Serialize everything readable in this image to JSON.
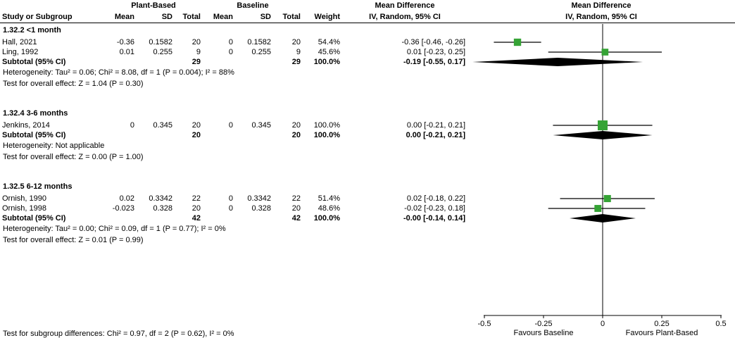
{
  "header": {
    "study_col": "Study or Subgroup",
    "group1_label": "Plant-Based",
    "group2_label": "Baseline",
    "mean_label": "Mean",
    "sd_label": "SD",
    "total_label": "Total",
    "weight_label": "Weight",
    "md_label": "Mean Difference",
    "md_method": "IV, Random, 95% CI"
  },
  "chart_data": {
    "type": "forest",
    "effect_measure": "Mean Difference",
    "model": "IV, Random, 95% CI",
    "x_axis": {
      "min": -0.5,
      "max": 0.5,
      "ticks": [
        -0.5,
        -0.25,
        0,
        0.25,
        0.5
      ],
      "tick_labels": [
        "-0.5",
        "-0.25",
        "0",
        "0.25",
        "0.5"
      ],
      "left_label": "Favours Baseline",
      "right_label": "Favours Plant-Based"
    },
    "colors": {
      "square": "#35a335",
      "diamond": "#000000",
      "line": "#000000"
    },
    "subgroups": [
      {
        "title": "1.32.2 <1 month",
        "studies": [
          {
            "name": "Hall, 2021",
            "mean1": "-0.36",
            "sd1": "0.1582",
            "total1": "20",
            "mean2": "0",
            "sd2": "0.1582",
            "total2": "20",
            "weight": "54.4%",
            "ci_text": "-0.36 [-0.46, -0.26]",
            "estimate": -0.36,
            "ci_low": -0.46,
            "ci_high": -0.26,
            "weight_value": 54.4
          },
          {
            "name": "Ling, 1992",
            "mean1": "0.01",
            "sd1": "0.255",
            "total1": "9",
            "mean2": "0",
            "sd2": "0.255",
            "total2": "9",
            "weight": "45.6%",
            "ci_text": "0.01 [-0.23, 0.25]",
            "estimate": 0.01,
            "ci_low": -0.23,
            "ci_high": 0.25,
            "weight_value": 45.6
          }
        ],
        "subtotal": {
          "label": "Subtotal (95% CI)",
          "total1": "29",
          "total2": "29",
          "weight": "100.0%",
          "ci_text": "-0.19 [-0.55, 0.17]",
          "estimate": -0.19,
          "ci_low": -0.55,
          "ci_high": 0.17
        },
        "heterogeneity": "Heterogeneity: Tau² = 0.06; Chi² = 8.08, df = 1 (P = 0.004); I² = 88%",
        "overall_effect": "Test for overall effect: Z = 1.04 (P = 0.30)"
      },
      {
        "title": "1.32.4 3-6 months",
        "studies": [
          {
            "name": "Jenkins, 2014",
            "mean1": "0",
            "sd1": "0.345",
            "total1": "20",
            "mean2": "0",
            "sd2": "0.345",
            "total2": "20",
            "weight": "100.0%",
            "ci_text": "0.00 [-0.21, 0.21]",
            "estimate": 0.0,
            "ci_low": -0.21,
            "ci_high": 0.21,
            "weight_value": 100.0
          }
        ],
        "subtotal": {
          "label": "Subtotal (95% CI)",
          "total1": "20",
          "total2": "20",
          "weight": "100.0%",
          "ci_text": "0.00 [-0.21, 0.21]",
          "estimate": 0.0,
          "ci_low": -0.21,
          "ci_high": 0.21
        },
        "heterogeneity": "Heterogeneity: Not applicable",
        "overall_effect": "Test for overall effect: Z = 0.00 (P = 1.00)"
      },
      {
        "title": "1.32.5 6-12 months",
        "studies": [
          {
            "name": "Ornish, 1990",
            "mean1": "0.02",
            "sd1": "0.3342",
            "total1": "22",
            "mean2": "0",
            "sd2": "0.3342",
            "total2": "22",
            "weight": "51.4%",
            "ci_text": "0.02 [-0.18, 0.22]",
            "estimate": 0.02,
            "ci_low": -0.18,
            "ci_high": 0.22,
            "weight_value": 51.4
          },
          {
            "name": "Ornish, 1998",
            "mean1": "-0.023",
            "sd1": "0.328",
            "total1": "20",
            "mean2": "0",
            "sd2": "0.328",
            "total2": "20",
            "weight": "48.6%",
            "ci_text": "-0.02 [-0.23, 0.18]",
            "estimate": -0.02,
            "ci_low": -0.23,
            "ci_high": 0.18,
            "weight_value": 48.6
          }
        ],
        "subtotal": {
          "label": "Subtotal (95% CI)",
          "total1": "42",
          "total2": "42",
          "weight": "100.0%",
          "ci_text": "-0.00 [-0.14, 0.14]",
          "estimate": -0.0,
          "ci_low": -0.14,
          "ci_high": 0.14
        },
        "heterogeneity": "Heterogeneity: Tau² = 0.00; Chi² = 0.09, df = 1 (P = 0.77); I² = 0%",
        "overall_effect": "Test for overall effect: Z = 0.01 (P = 0.99)"
      }
    ]
  },
  "footer": {
    "subgroup_test": "Test for subgroup differences: Chi² = 0.97, df = 2 (P = 0.62), I² = 0%"
  }
}
